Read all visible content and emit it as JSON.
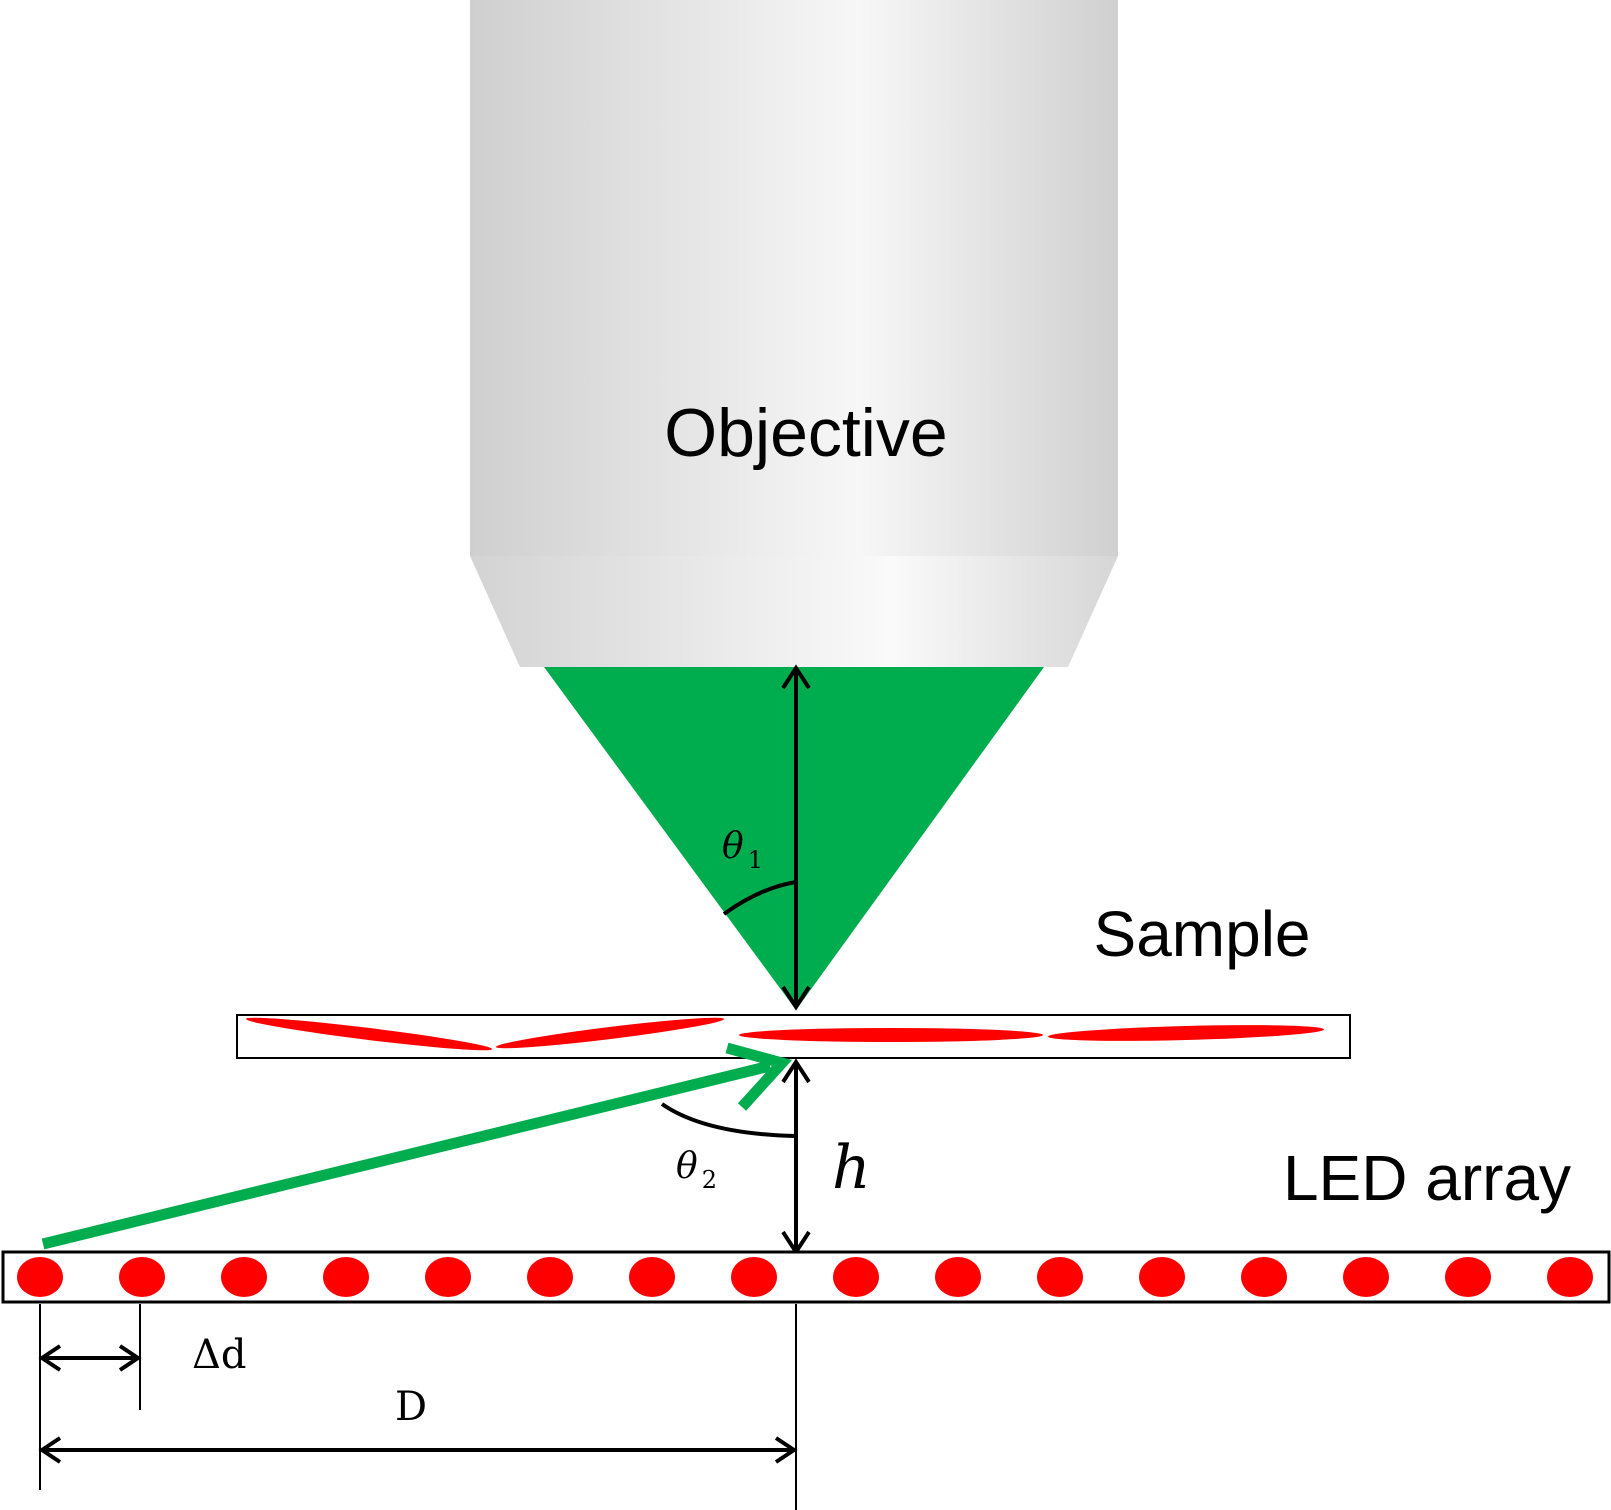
{
  "labels": {
    "objective": "Objective",
    "sample": "Sample",
    "led_array": "LED array",
    "theta1_symbol": "θ",
    "theta1_sub": "1",
    "theta2_symbol": "θ",
    "theta2_sub": "2",
    "height": "h",
    "pitch": "Δd",
    "distance": "D"
  },
  "colors": {
    "objective_light": "#f7f7f7",
    "objective_dark": "#cdcdcd",
    "light_cone": "#00ad4e",
    "led": "#ff0000",
    "line": "#000000",
    "background": "#ffffff"
  },
  "led_count": 16
}
